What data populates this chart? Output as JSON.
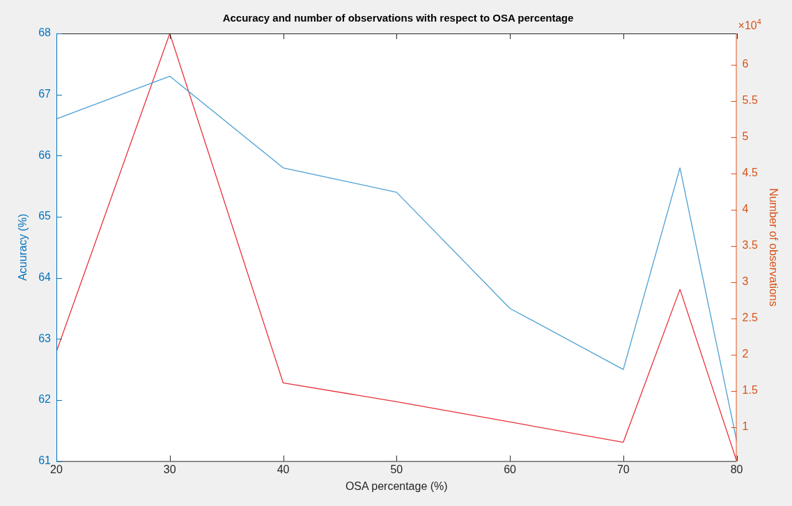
{
  "chart_data": {
    "type": "line",
    "title": "Accuracy and number of observations with respect to OSA percentage",
    "xlabel": "OSA percentage (%)",
    "ylabel": "Acuuracy (%)",
    "y2label": "Number of observations",
    "x": [
      20,
      30,
      40,
      50,
      60,
      70,
      75,
      80
    ],
    "series": [
      {
        "color": "#4d9fd3",
        "values": [
          66.6,
          67.3,
          65.8,
          65.4,
          63.5,
          62.5,
          65.8,
          61.33
        ]
      },
      {
        "color": "#e8303a",
        "axis": "y2",
        "values": [
          2.04,
          6.43,
          1.61,
          1.35,
          1.07,
          0.79,
          2.9,
          0.53
        ]
      }
    ],
    "marker": "none",
    "xlim": [
      20,
      80
    ],
    "xticks": [
      20,
      30,
      40,
      50,
      60,
      70,
      80
    ],
    "ylim": [
      61,
      68
    ],
    "yticks": [
      61,
      62,
      63,
      64,
      65,
      66,
      67,
      68
    ],
    "y2lim": [
      0.53,
      6.43
    ],
    "y2ticks": [
      1,
      1.5,
      2,
      2.5,
      3,
      3.5,
      4,
      4.5,
      5,
      5.5,
      6
    ],
    "annotations": [
      "×10$^{4}$"
    ]
  }
}
